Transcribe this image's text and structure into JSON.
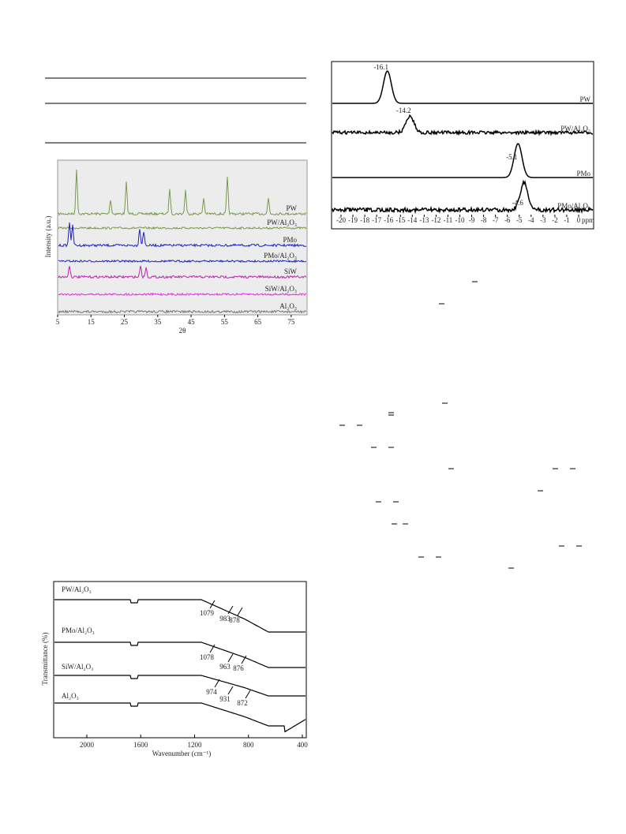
{
  "xrd": {
    "ylabel": "Intensity (a.u.)",
    "xlabel": "2θ",
    "xlim": [
      5,
      80
    ],
    "xticks": [
      5,
      15,
      25,
      35,
      45,
      55,
      65,
      75
    ],
    "labels": [
      "PW",
      "PW/Al₂O₃",
      "PMo",
      "PMo/Al₂O₃",
      "SiW",
      "SiW/Al₂O₃",
      "Al₂O₃"
    ]
  },
  "nmr": {
    "peaks": [
      -16.1,
      -14.2,
      -5.1,
      -4.6
    ],
    "labels": [
      "PW",
      "PW/Al₂O₃",
      "PMo",
      "PMo/Al₂O₃"
    ],
    "xticks": [
      -20,
      -19,
      -18,
      -17,
      -16,
      -15,
      -14,
      -13,
      -12,
      -11,
      -10,
      -9,
      -8,
      -7,
      -6,
      -5,
      -4,
      -3,
      -2,
      -1,
      0
    ],
    "unit": "ppm"
  },
  "ir": {
    "ylabel": "Transmittance (%)",
    "xlabel": "Wavenumber (cm⁻¹)",
    "xticks": [
      2000,
      1600,
      1200,
      800,
      400
    ],
    "labels": [
      "PW/Al₂O₃",
      "PMo/Al₂O₃",
      "SiW/Al₂O₃",
      "Al₂O₃"
    ],
    "peaks": [
      1079,
      983,
      878,
      1078,
      963,
      876,
      974,
      931,
      872
    ]
  }
}
